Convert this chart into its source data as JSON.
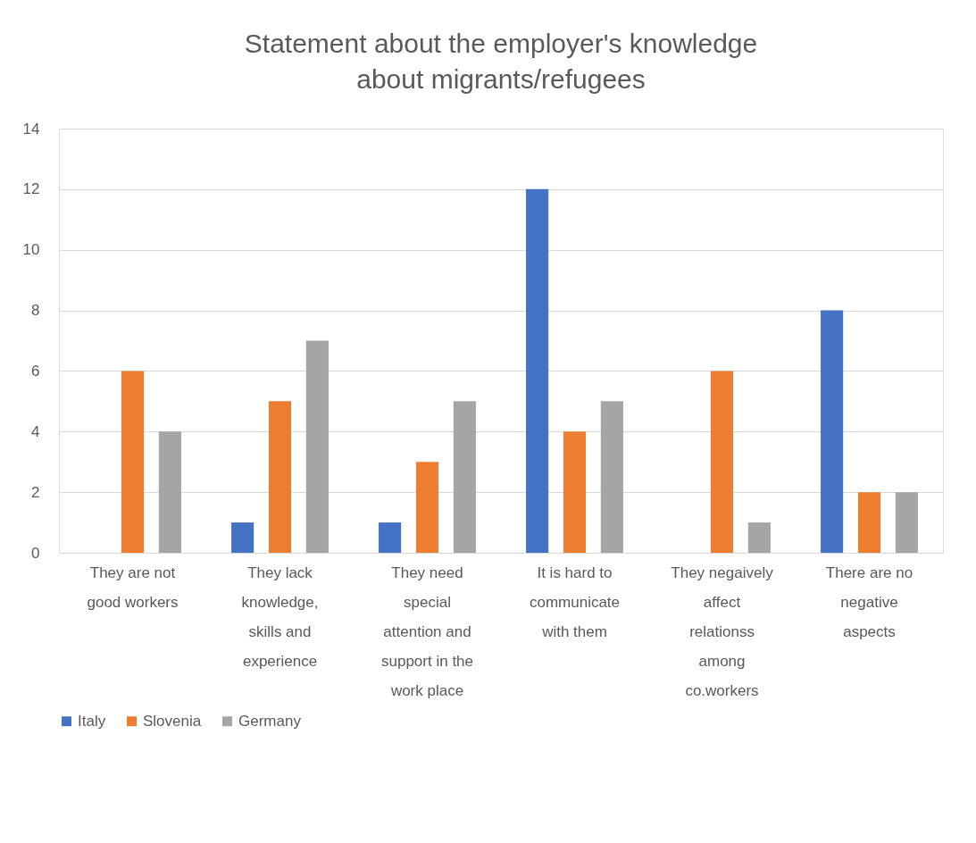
{
  "chart_data": {
    "type": "bar",
    "title": "Statement about the employer's knowledge about migrants/refugees",
    "categories": [
      "They are not good workers",
      "They lack knowledge, skills and experience",
      "They need special attention and support in the work place",
      "It is hard to communicate with them",
      "They negaively affect relationss among co.workers",
      "There are no negative aspects"
    ],
    "series": [
      {
        "name": "Italy",
        "color": "#4472c4",
        "values": [
          0,
          1,
          1,
          12,
          0,
          8
        ]
      },
      {
        "name": "Slovenia",
        "color": "#ed7d31",
        "values": [
          6,
          5,
          3,
          4,
          6,
          2
        ]
      },
      {
        "name": "Germany",
        "color": "#a5a5a5",
        "values": [
          4,
          7,
          5,
          5,
          1,
          2
        ]
      }
    ],
    "ylim": [
      0,
      14
    ],
    "yticks": [
      0,
      2,
      4,
      6,
      8,
      10,
      12,
      14
    ],
    "grid": "y",
    "legend": "bottom"
  }
}
